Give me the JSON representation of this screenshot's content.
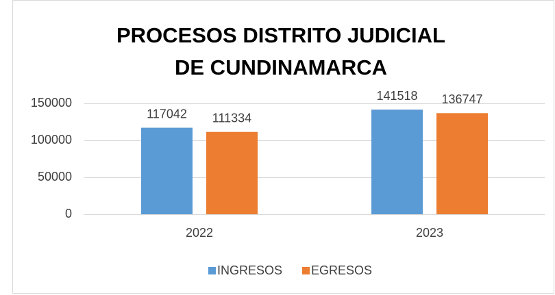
{
  "chart_data": {
    "type": "bar",
    "title": "PROCESOS DISTRITO JUDICIAL DE CUNDINAMARCA",
    "categories": [
      "2022",
      "2023"
    ],
    "series": [
      {
        "name": "INGRESOS",
        "color": "#5b9bd5",
        "values": [
          117042,
          141518
        ]
      },
      {
        "name": "EGRESOS",
        "color": "#ed7d31",
        "values": [
          111334,
          136747
        ]
      }
    ],
    "ylim": [
      0,
      150000
    ],
    "yticks": [
      0,
      50000,
      100000,
      150000
    ],
    "grid": true,
    "legend": "bottom"
  }
}
